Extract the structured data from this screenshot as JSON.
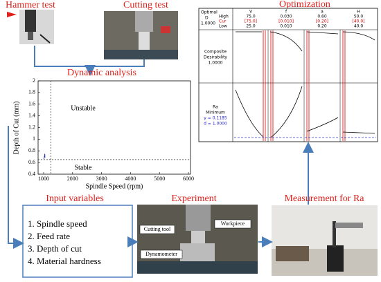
{
  "labels": {
    "hammer_test": "Hammer test",
    "cutting_test": "Cutting test",
    "dynamic_analysis": "Dynamic analysis",
    "optimization": "Optimization",
    "input_variables": "Input variables",
    "experiment": "Experiment",
    "measurement": "Measurement for Ra"
  },
  "dynamic_chart": {
    "x_label": "Spindle Speed (rpm)",
    "y_label": "Depth of Cut (mm)",
    "x_ticks": [
      1000,
      2000,
      3000,
      4000,
      5000,
      6000
    ],
    "y_ticks": [
      0.4,
      0.6,
      0.8,
      1,
      1.2,
      1.4,
      1.6,
      1.8,
      2
    ],
    "unstable": "Unstable",
    "stable": "Stable"
  },
  "input_list": [
    "1.   Spindle speed",
    "2.   Feed rate",
    "3.   Depth of cut",
    "4.   Material hardness"
  ],
  "experiment_labels": {
    "tool": "Cutting tool",
    "workpiece": "Workpiece",
    "dynamometer": "Dynamometer"
  },
  "optimization": {
    "header": {
      "optimal": "Optimal",
      "d": "D",
      "d_value": "1.0000",
      "high": "High",
      "cur": "Cur",
      "low": "Low"
    },
    "columns": [
      {
        "name": "V",
        "high": "75.0",
        "cur": "[75.0]",
        "low": "25.0"
      },
      {
        "name": "f",
        "high": "0.030",
        "cur": "[0.010]",
        "low": "0.010"
      },
      {
        "name": "a",
        "high": "0.60",
        "cur": "[0.20]",
        "low": "0.20"
      },
      {
        "name": "H",
        "high": "50.0",
        "cur": "[40.0]",
        "low": "40.0"
      }
    ],
    "composite": [
      "Composite",
      "Desirability",
      "1.0000"
    ],
    "response": [
      "Ra",
      "Minimum",
      "y = 0.1185",
      "d = 1.0000"
    ]
  }
}
